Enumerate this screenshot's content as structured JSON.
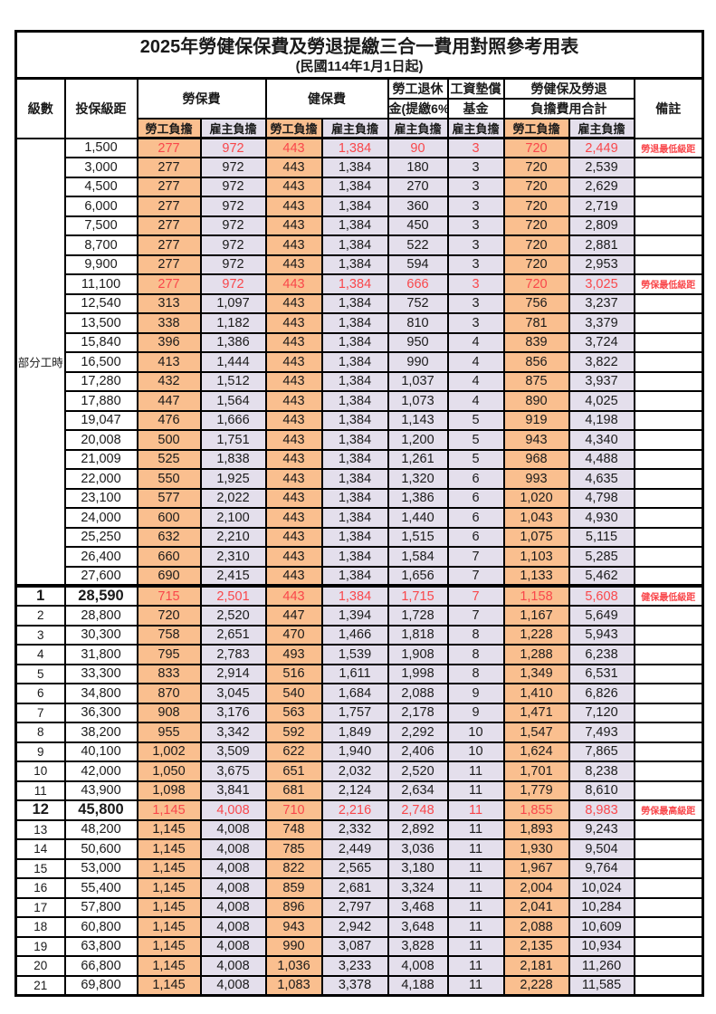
{
  "title": "2025年勞健保保費及勞退提繳三合一費用對照參考用表",
  "subtitle": "(民國114年1月1日起)",
  "colors": {
    "worker_bg": "#FABF8F",
    "employer_bg": "#E4DFEC",
    "red_text": "#F9474B",
    "border": "#000000"
  },
  "header": {
    "level": "級數",
    "bracket": "投保級距",
    "labor_group": "勞保費",
    "health_group": "健保費",
    "pension_line1": "勞工退休",
    "pension_line2": "金(提繳6%)",
    "wage_fund_line1": "工資墊償",
    "wage_fund_line2": "基金",
    "total_line1": "勞健保及勞退",
    "total_line2": "負擔費用合計",
    "worker": "勞工負擔",
    "employer": "雇主負擔",
    "note": "備註"
  },
  "part_time_label": "部分工時",
  "rows": [
    [
      "",
      "1,500",
      "277",
      "972",
      "443",
      "1,384",
      "90",
      "3",
      "720",
      "2,449",
      "勞退最低級距",
      "red"
    ],
    [
      "",
      "3,000",
      "277",
      "972",
      "443",
      "1,384",
      "180",
      "3",
      "720",
      "2,539",
      "",
      ""
    ],
    [
      "",
      "4,500",
      "277",
      "972",
      "443",
      "1,384",
      "270",
      "3",
      "720",
      "2,629",
      "",
      ""
    ],
    [
      "",
      "6,000",
      "277",
      "972",
      "443",
      "1,384",
      "360",
      "3",
      "720",
      "2,719",
      "",
      ""
    ],
    [
      "",
      "7,500",
      "277",
      "972",
      "443",
      "1,384",
      "450",
      "3",
      "720",
      "2,809",
      "",
      ""
    ],
    [
      "",
      "8,700",
      "277",
      "972",
      "443",
      "1,384",
      "522",
      "3",
      "720",
      "2,881",
      "",
      ""
    ],
    [
      "",
      "9,900",
      "277",
      "972",
      "443",
      "1,384",
      "594",
      "3",
      "720",
      "2,953",
      "",
      ""
    ],
    [
      "",
      "11,100",
      "277",
      "972",
      "443",
      "1,384",
      "666",
      "3",
      "720",
      "3,025",
      "勞保最低級距",
      "red"
    ],
    [
      "",
      "12,540",
      "313",
      "1,097",
      "443",
      "1,384",
      "752",
      "3",
      "756",
      "3,237",
      "",
      ""
    ],
    [
      "",
      "13,500",
      "338",
      "1,182",
      "443",
      "1,384",
      "810",
      "3",
      "781",
      "3,379",
      "",
      ""
    ],
    [
      "",
      "15,840",
      "396",
      "1,386",
      "443",
      "1,384",
      "950",
      "4",
      "839",
      "3,724",
      "",
      ""
    ],
    [
      "",
      "16,500",
      "413",
      "1,444",
      "443",
      "1,384",
      "990",
      "4",
      "856",
      "3,822",
      "",
      ""
    ],
    [
      "",
      "17,280",
      "432",
      "1,512",
      "443",
      "1,384",
      "1,037",
      "4",
      "875",
      "3,937",
      "",
      ""
    ],
    [
      "",
      "17,880",
      "447",
      "1,564",
      "443",
      "1,384",
      "1,073",
      "4",
      "890",
      "4,025",
      "",
      ""
    ],
    [
      "",
      "19,047",
      "476",
      "1,666",
      "443",
      "1,384",
      "1,143",
      "5",
      "919",
      "4,198",
      "",
      ""
    ],
    [
      "",
      "20,008",
      "500",
      "1,751",
      "443",
      "1,384",
      "1,200",
      "5",
      "943",
      "4,340",
      "",
      ""
    ],
    [
      "",
      "21,009",
      "525",
      "1,838",
      "443",
      "1,384",
      "1,261",
      "5",
      "968",
      "4,488",
      "",
      ""
    ],
    [
      "",
      "22,000",
      "550",
      "1,925",
      "443",
      "1,384",
      "1,320",
      "6",
      "993",
      "4,635",
      "",
      ""
    ],
    [
      "",
      "23,100",
      "577",
      "2,022",
      "443",
      "1,384",
      "1,386",
      "6",
      "1,020",
      "4,798",
      "",
      ""
    ],
    [
      "",
      "24,000",
      "600",
      "2,100",
      "443",
      "1,384",
      "1,440",
      "6",
      "1,043",
      "4,930",
      "",
      ""
    ],
    [
      "",
      "25,250",
      "632",
      "2,210",
      "443",
      "1,384",
      "1,515",
      "6",
      "1,075",
      "5,115",
      "",
      ""
    ],
    [
      "",
      "26,400",
      "660",
      "2,310",
      "443",
      "1,384",
      "1,584",
      "7",
      "1,103",
      "5,285",
      "",
      ""
    ],
    [
      "",
      "27,600",
      "690",
      "2,415",
      "443",
      "1,384",
      "1,656",
      "7",
      "1,133",
      "5,462",
      "",
      ""
    ],
    [
      "1",
      "28,590",
      "715",
      "2,501",
      "443",
      "1,384",
      "1,715",
      "7",
      "1,158",
      "5,608",
      "健保最低級距",
      "red bold thick"
    ],
    [
      "2",
      "28,800",
      "720",
      "2,520",
      "447",
      "1,394",
      "1,728",
      "7",
      "1,167",
      "5,649",
      "",
      ""
    ],
    [
      "3",
      "30,300",
      "758",
      "2,651",
      "470",
      "1,466",
      "1,818",
      "8",
      "1,228",
      "5,943",
      "",
      ""
    ],
    [
      "4",
      "31,800",
      "795",
      "2,783",
      "493",
      "1,539",
      "1,908",
      "8",
      "1,288",
      "6,238",
      "",
      ""
    ],
    [
      "5",
      "33,300",
      "833",
      "2,914",
      "516",
      "1,611",
      "1,998",
      "8",
      "1,349",
      "6,531",
      "",
      ""
    ],
    [
      "6",
      "34,800",
      "870",
      "3,045",
      "540",
      "1,684",
      "2,088",
      "9",
      "1,410",
      "6,826",
      "",
      ""
    ],
    [
      "7",
      "36,300",
      "908",
      "3,176",
      "563",
      "1,757",
      "2,178",
      "9",
      "1,471",
      "7,120",
      "",
      ""
    ],
    [
      "8",
      "38,200",
      "955",
      "3,342",
      "592",
      "1,849",
      "2,292",
      "10",
      "1,547",
      "7,493",
      "",
      ""
    ],
    [
      "9",
      "40,100",
      "1,002",
      "3,509",
      "622",
      "1,940",
      "2,406",
      "10",
      "1,624",
      "7,865",
      "",
      ""
    ],
    [
      "10",
      "42,000",
      "1,050",
      "3,675",
      "651",
      "2,032",
      "2,520",
      "11",
      "1,701",
      "8,238",
      "",
      ""
    ],
    [
      "11",
      "43,900",
      "1,098",
      "3,841",
      "681",
      "2,124",
      "2,634",
      "11",
      "1,779",
      "8,610",
      "",
      ""
    ],
    [
      "12",
      "45,800",
      "1,145",
      "4,008",
      "710",
      "2,216",
      "2,748",
      "11",
      "1,855",
      "8,983",
      "勞保最高級距",
      "red bold"
    ],
    [
      "13",
      "48,200",
      "1,145",
      "4,008",
      "748",
      "2,332",
      "2,892",
      "11",
      "1,893",
      "9,243",
      "",
      ""
    ],
    [
      "14",
      "50,600",
      "1,145",
      "4,008",
      "785",
      "2,449",
      "3,036",
      "11",
      "1,930",
      "9,504",
      "",
      ""
    ],
    [
      "15",
      "53,000",
      "1,145",
      "4,008",
      "822",
      "2,565",
      "3,180",
      "11",
      "1,967",
      "9,764",
      "",
      ""
    ],
    [
      "16",
      "55,400",
      "1,145",
      "4,008",
      "859",
      "2,681",
      "3,324",
      "11",
      "2,004",
      "10,024",
      "",
      ""
    ],
    [
      "17",
      "57,800",
      "1,145",
      "4,008",
      "896",
      "2,797",
      "3,468",
      "11",
      "2,041",
      "10,284",
      "",
      ""
    ],
    [
      "18",
      "60,800",
      "1,145",
      "4,008",
      "943",
      "2,942",
      "3,648",
      "11",
      "2,088",
      "10,609",
      "",
      ""
    ],
    [
      "19",
      "63,800",
      "1,145",
      "4,008",
      "990",
      "3,087",
      "3,828",
      "11",
      "2,135",
      "10,934",
      "",
      ""
    ],
    [
      "20",
      "66,800",
      "1,145",
      "4,008",
      "1,036",
      "3,233",
      "4,008",
      "11",
      "2,181",
      "11,260",
      "",
      ""
    ],
    [
      "21",
      "69,800",
      "1,145",
      "4,008",
      "1,083",
      "3,378",
      "4,188",
      "11",
      "2,228",
      "11,585",
      "",
      ""
    ]
  ]
}
